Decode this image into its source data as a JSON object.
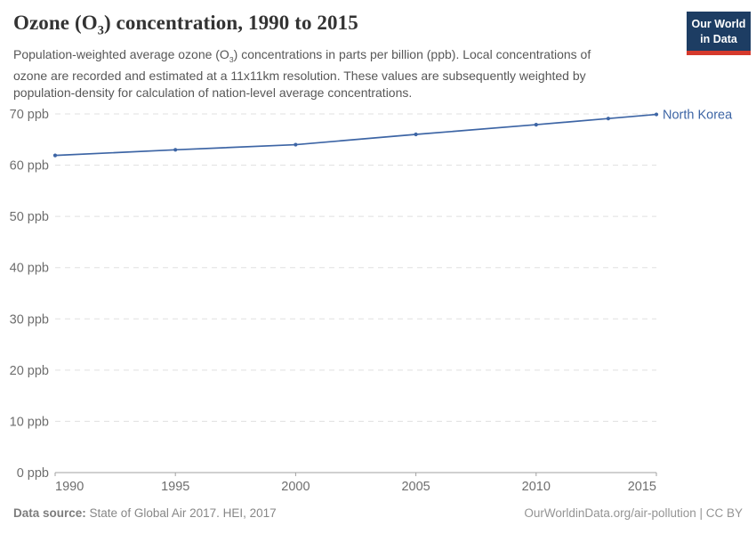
{
  "header": {
    "title_prefix": "Ozone (O",
    "title_sub": "3",
    "title_suffix": ") concentration, 1990 to 2015",
    "subtitle_line1_prefix": "Population-weighted average ozone (O",
    "subtitle_sub": "3",
    "subtitle_line1_suffix": ") concentrations in parts per billion (ppb). Local concentrations of",
    "subtitle_line2": "ozone are recorded and estimated at a 11x11km resolution. These values are subsequently weighted by",
    "subtitle_line3": "population-density for calculation of nation-level average concentrations."
  },
  "logo": {
    "line1": "Our World",
    "line2": "in Data",
    "bg_color": "#1d3d63",
    "bar_color": "#d5392c"
  },
  "chart_data": {
    "type": "line",
    "title": "Ozone (O₃) concentration, 1990 to 2015",
    "x": [
      1990,
      1995,
      2000,
      2005,
      2010,
      2013,
      2015
    ],
    "series": [
      {
        "name": "North Korea",
        "color": "#3d65a5",
        "values": [
          61.9,
          63.0,
          64.0,
          66.0,
          67.9,
          69.1,
          69.9
        ]
      }
    ],
    "xlim": [
      1990,
      2015
    ],
    "ylim": [
      0,
      70
    ],
    "xticks": [
      1990,
      1995,
      2000,
      2005,
      2010,
      2015
    ],
    "yticks": [
      0,
      10,
      20,
      30,
      40,
      50,
      60,
      70
    ],
    "ytick_suffix": " ppb",
    "grid": "horizontal-dashed",
    "legend": "end-of-line-label"
  },
  "footer": {
    "source_label": "Data source:",
    "source_text": " State of Global Air 2017. HEI, 2017",
    "right_text": "OurWorldinData.org/air-pollution | CC BY"
  }
}
